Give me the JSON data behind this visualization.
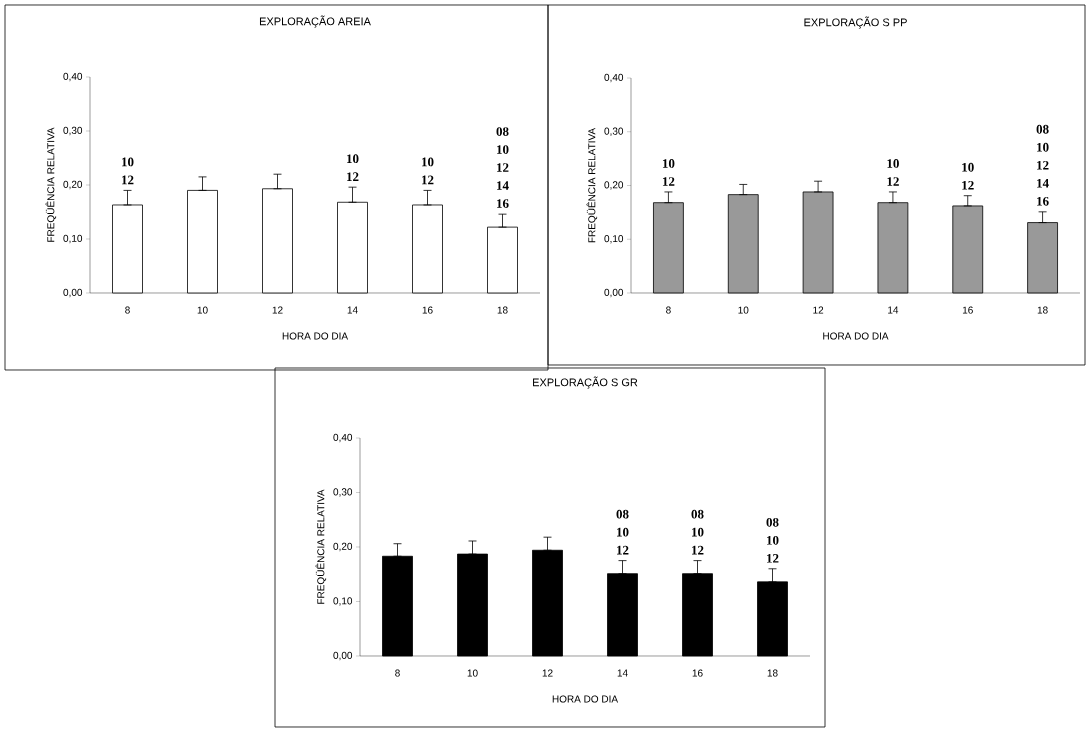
{
  "chart_data": [
    {
      "type": "bar",
      "title": "EXPLORAÇÃO AREIA",
      "xlabel": "HORA DO DIA",
      "ylabel": "FREQÜÊNCIA RELATIVA",
      "categories": [
        "8",
        "10",
        "12",
        "14",
        "16",
        "18"
      ],
      "color": "#ffffff",
      "values": [
        0.163,
        0.19,
        0.193,
        0.168,
        0.163,
        0.122
      ],
      "errors": [
        [
          0.163,
          0.19
        ],
        [
          0.19,
          0.215
        ],
        [
          0.193,
          0.22
        ],
        [
          0.168,
          0.196
        ],
        [
          0.163,
          0.19
        ],
        [
          0.122,
          0.146
        ]
      ],
      "ylim": [
        0,
        0.4
      ],
      "yticks": [
        {
          "value": 0,
          "label": "0,00"
        },
        {
          "value": 0.1,
          "label": "0,10"
        },
        {
          "value": 0.2,
          "label": "0,20"
        },
        {
          "value": 0.3,
          "label": "0,30"
        },
        {
          "value": 0.4,
          "label": "0,40"
        }
      ],
      "annotations": [
        {
          "text": "10\n12",
          "x": "8",
          "y": 0.19
        },
        {
          "text": "10\n12",
          "x": "14",
          "y": 0.196
        },
        {
          "text": "10\n12",
          "x": "16",
          "y": 0.19
        },
        {
          "text": "08\n10\n12\n14\n16",
          "x": "18",
          "y": 0.146
        }
      ]
    },
    {
      "type": "bar",
      "title": "EXPLORAÇÃO S PP",
      "xlabel": "HORA DO DIA",
      "ylabel": "FREQÜÊNCIA RELATIVA",
      "categories": [
        "8",
        "10",
        "12",
        "14",
        "16",
        "18"
      ],
      "color": "#999999",
      "values": [
        0.168,
        0.183,
        0.188,
        0.168,
        0.162,
        0.131
      ],
      "errors": [
        [
          0.168,
          0.188
        ],
        [
          0.183,
          0.202
        ],
        [
          0.188,
          0.208
        ],
        [
          0.168,
          0.188
        ],
        [
          0.162,
          0.181
        ],
        [
          0.131,
          0.151
        ]
      ],
      "ylim": [
        0,
        0.4
      ],
      "yticks": [
        {
          "value": 0,
          "label": "0,00"
        },
        {
          "value": 0.1,
          "label": "0,10"
        },
        {
          "value": 0.2,
          "label": "0,20"
        },
        {
          "value": 0.3,
          "label": "0,30"
        },
        {
          "value": 0.4,
          "label": "0,40"
        }
      ],
      "annotations": [
        {
          "text": "10\n12",
          "x": "8",
          "y": 0.188
        },
        {
          "text": "10\n12",
          "x": "14",
          "y": 0.188
        },
        {
          "text": "10\n12",
          "x": "16",
          "y": 0.181
        },
        {
          "text": "08\n10\n12\n14\n16",
          "x": "18",
          "y": 0.151
        }
      ]
    },
    {
      "type": "bar",
      "title": "EXPLORAÇÃO S GR",
      "xlabel": "HORA DO DIA",
      "ylabel": "FREQÜÊNCIA RELATIVA",
      "categories": [
        "8",
        "10",
        "12",
        "14",
        "16",
        "18"
      ],
      "color": "#000000",
      "values": [
        0.183,
        0.187,
        0.194,
        0.151,
        0.151,
        0.136
      ],
      "errors": [
        [
          0.183,
          0.206
        ],
        [
          0.187,
          0.211
        ],
        [
          0.194,
          0.218
        ],
        [
          0.151,
          0.175
        ],
        [
          0.151,
          0.175
        ],
        [
          0.136,
          0.16
        ]
      ],
      "ylim": [
        0,
        0.4
      ],
      "yticks": [
        {
          "value": 0,
          "label": "0,00"
        },
        {
          "value": 0.1,
          "label": "0,10"
        },
        {
          "value": 0.2,
          "label": "0,20"
        },
        {
          "value": 0.3,
          "label": "0,30"
        },
        {
          "value": 0.4,
          "label": "0,40"
        }
      ],
      "annotations": [
        {
          "text": "08\n10\n12",
          "x": "14",
          "y": 0.175
        },
        {
          "text": "08\n10\n12",
          "x": "16",
          "y": 0.175
        },
        {
          "text": "08\n10\n12",
          "x": "18",
          "y": 0.16
        }
      ]
    }
  ]
}
